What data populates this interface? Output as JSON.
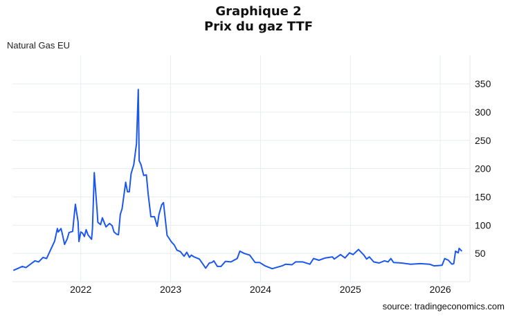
{
  "chart_data": {
    "type": "line",
    "title": "Graphique 2",
    "subtitle": "Prix du gaz TTF",
    "series_label": "Natural Gas EU",
    "source": "source: tradingeconomics.com",
    "xlabel": "",
    "ylabel": "",
    "xlim": [
      2021.24,
      2026.33
    ],
    "ylim": [
      0,
      400
    ],
    "x_ticks": [
      2022,
      2023,
      2024,
      2025,
      2026
    ],
    "x_tick_labels": [
      "2022",
      "2023",
      "2024",
      "2025",
      "2026"
    ],
    "y_ticks": [
      50,
      100,
      150,
      200,
      250,
      300,
      350
    ],
    "y_tick_labels": [
      "50",
      "100",
      "150",
      "200",
      "250",
      "300",
      "350"
    ],
    "grid": true,
    "line_color": "#1a56f0",
    "series": [
      {
        "name": "Natural Gas EU",
        "x": [
          2021.25,
          2021.35,
          2021.39,
          2021.49,
          2021.53,
          2021.58,
          2021.62,
          2021.71,
          2021.74,
          2021.75,
          2021.78,
          2021.79,
          2021.82,
          2021.85,
          2021.87,
          2021.91,
          2021.92,
          2021.94,
          2021.97,
          2021.98,
          2022.0,
          2022.02,
          2022.04,
          2022.06,
          2022.08,
          2022.12,
          2022.13,
          2022.15,
          2022.18,
          2022.19,
          2022.22,
          2022.24,
          2022.28,
          2022.32,
          2022.35,
          2022.37,
          2022.4,
          2022.42,
          2022.44,
          2022.46,
          2022.5,
          2022.52,
          2022.54,
          2022.56,
          2022.59,
          2022.62,
          2022.64,
          2022.65,
          2022.67,
          2022.7,
          2022.73,
          2022.75,
          2022.78,
          2022.82,
          2022.85,
          2022.87,
          2022.9,
          2022.92,
          2022.96,
          2023.01,
          2023.04,
          2023.07,
          2023.11,
          2023.13,
          2023.15,
          2023.18,
          2023.21,
          2023.23,
          2023.26,
          2023.32,
          2023.36,
          2023.39,
          2023.43,
          2023.46,
          2023.48,
          2023.52,
          2023.56,
          2023.61,
          2023.67,
          2023.74,
          2023.77,
          2023.82,
          2023.88,
          2023.94,
          2023.99,
          2024.05,
          2024.13,
          2024.24,
          2024.28,
          2024.35,
          2024.39,
          2024.47,
          2024.55,
          2024.59,
          2024.65,
          2024.72,
          2024.8,
          2024.82,
          2024.89,
          2024.94,
          2024.99,
          2025.03,
          2025.09,
          2025.15,
          2025.18,
          2025.21,
          2025.26,
          2025.32,
          2025.38,
          2025.42,
          2025.45,
          2025.48,
          2025.57,
          2025.67,
          2025.78,
          2025.88,
          2025.93,
          2026.02,
          2026.05,
          2026.09,
          2026.13,
          2026.15,
          2026.17,
          2026.2,
          2026.21,
          2026.24
        ],
        "y": [
          20,
          27,
          25,
          37,
          35,
          43,
          41,
          72,
          94,
          88,
          94,
          88,
          66,
          76,
          87,
          89,
          106,
          137,
          106,
          71,
          88,
          86,
          80,
          92,
          83,
          75,
          94,
          193,
          129,
          105,
          101,
          113,
          97,
          103,
          99,
          88,
          84,
          83,
          119,
          129,
          176,
          159,
          159,
          191,
          207,
          244,
          340,
          214,
          207,
          188,
          189,
          155,
          115,
          115,
          98,
          119,
          136,
          140,
          82,
          70,
          65,
          56,
          53,
          49,
          45,
          52,
          43,
          47,
          44,
          40,
          31,
          24,
          33,
          34,
          37,
          27,
          27,
          36,
          35,
          41,
          54,
          50,
          47,
          34,
          34,
          28,
          23,
          28,
          31,
          30,
          35,
          35,
          31,
          41,
          38,
          42,
          44,
          40,
          48,
          42,
          51,
          48,
          57,
          47,
          40,
          44,
          35,
          33,
          37,
          35,
          41,
          34,
          33,
          31,
          32,
          31,
          28,
          29,
          41,
          38,
          31,
          32,
          54,
          51,
          59,
          54
        ]
      }
    ]
  }
}
